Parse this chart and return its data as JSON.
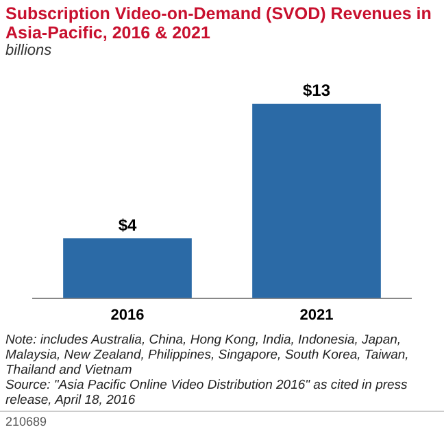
{
  "chart_data": {
    "type": "bar",
    "title": "Subscription Video-on-Demand (SVOD) Revenues in Asia-Pacific, 2016 & 2021",
    "subtitle": "billions",
    "categories": [
      "2016",
      "2021"
    ],
    "values": [
      4,
      13
    ],
    "color": "#2b6aa6",
    "value_labels": [
      "$4",
      "$13"
    ],
    "annotations": [
      "Note: includes Australia, China, Hong Kong, India, Indonesia, Japan, Malaysia, New Zealand, Philippines, Singapore, South Korea, Taiwan, Thailand and Vietnam",
      "Source: \"Asia Pacific Online Video Distribution 2016\" as cited in press release, April 18, 2016",
      "210689"
    ]
  }
}
